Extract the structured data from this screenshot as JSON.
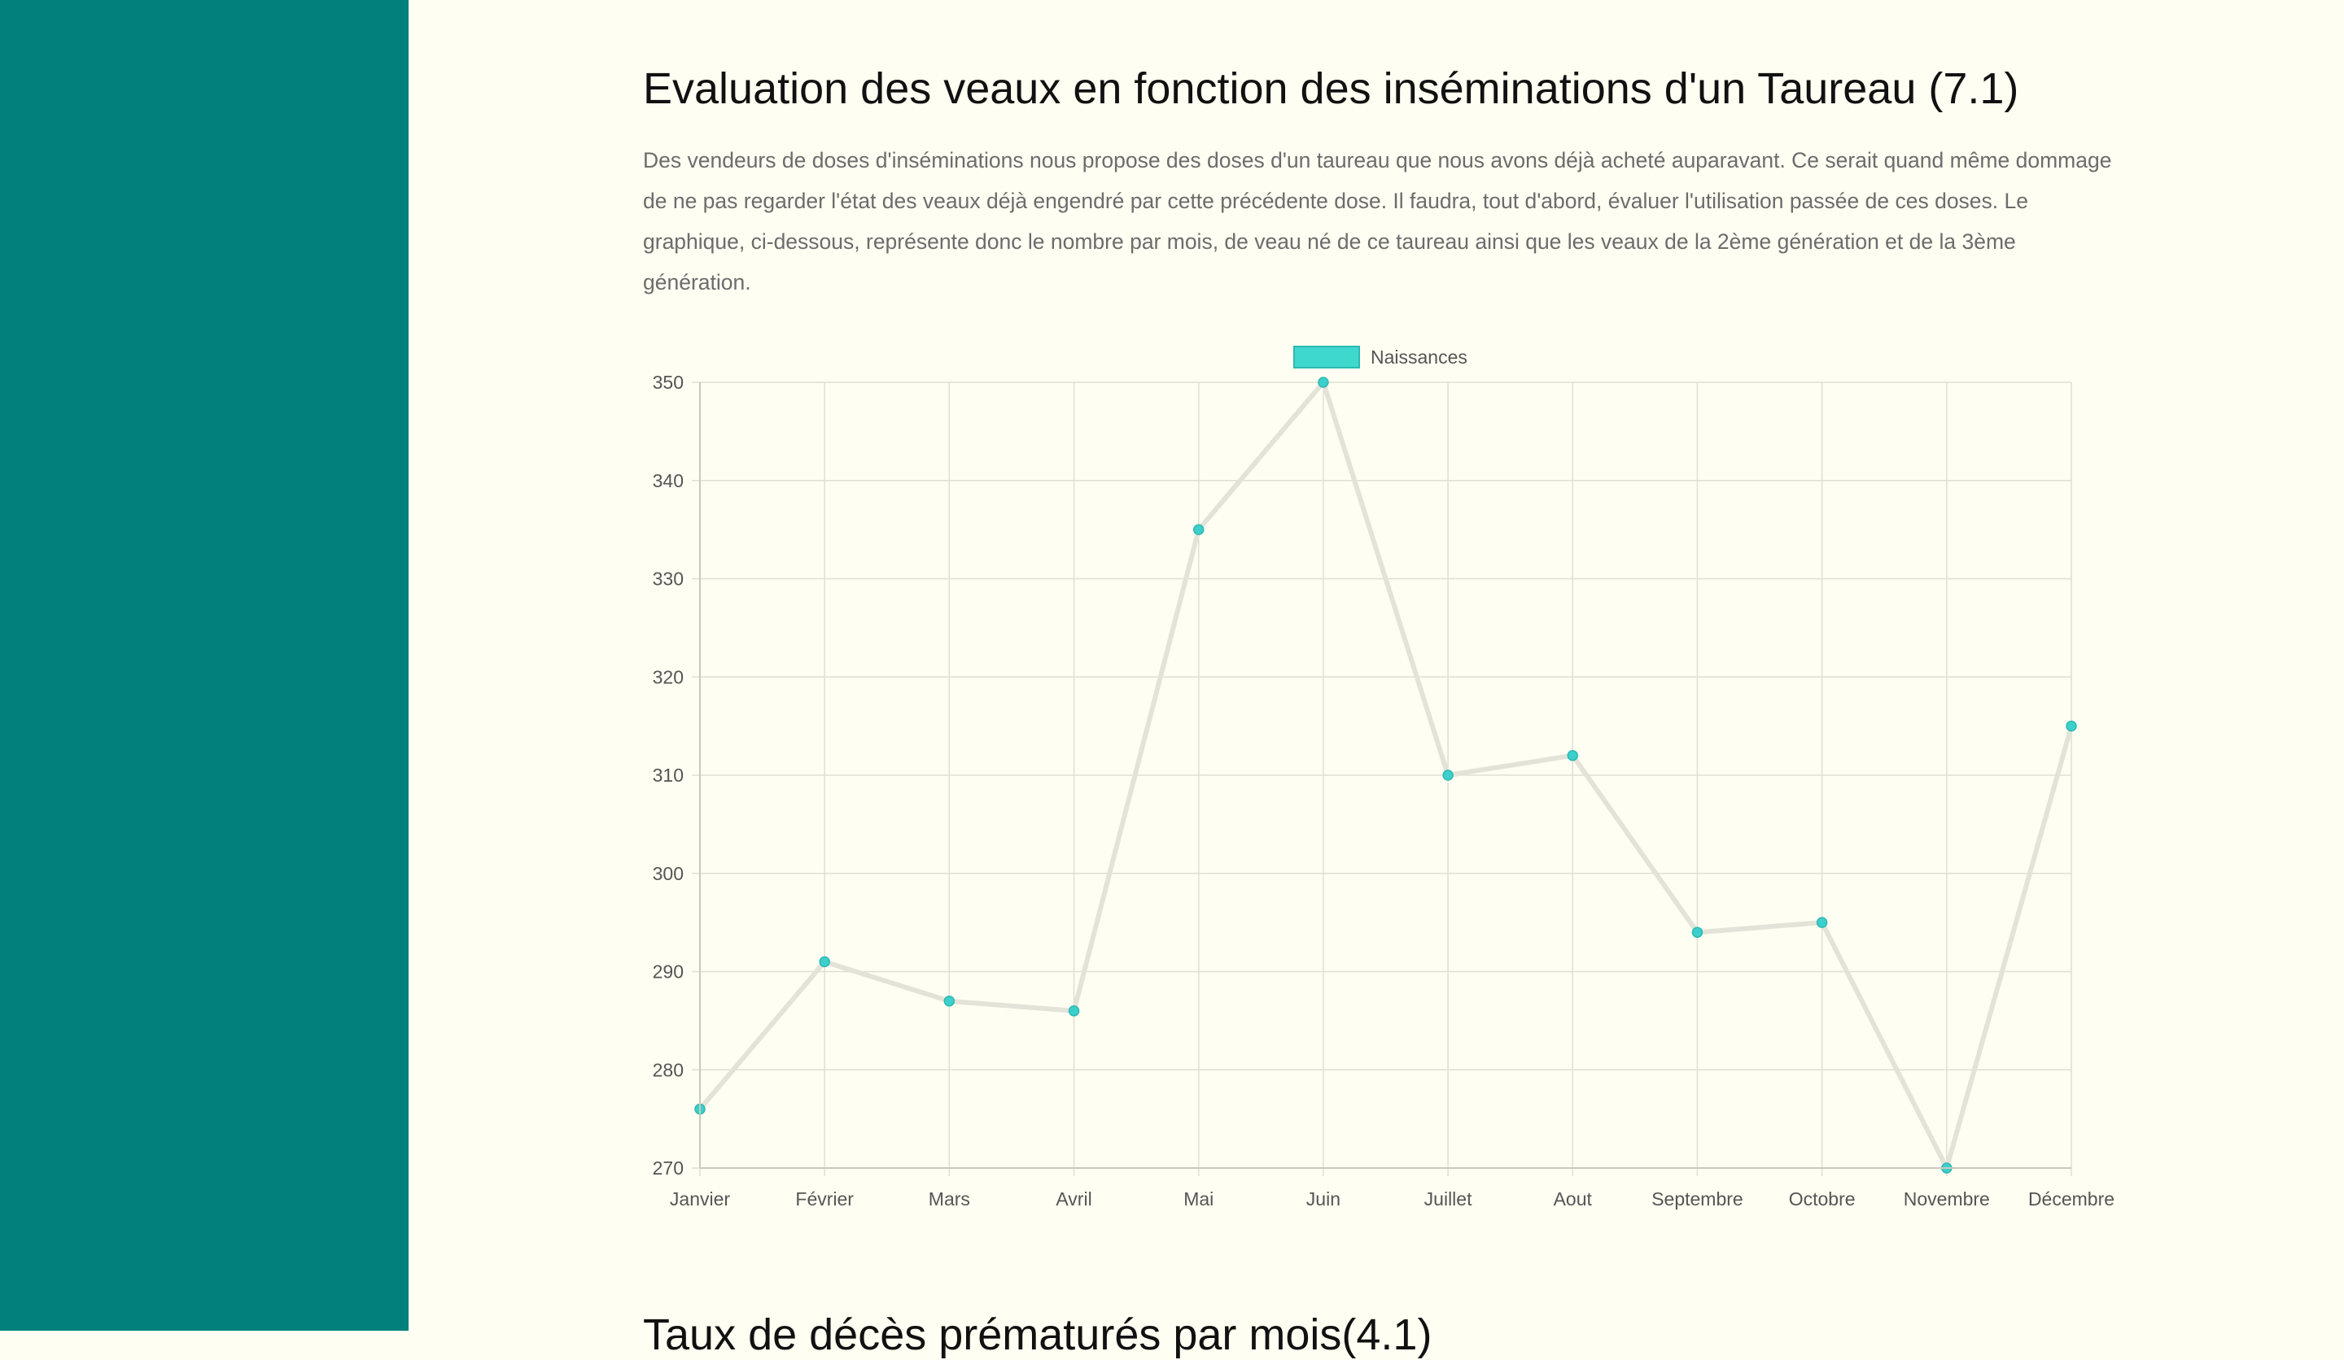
{
  "main": {
    "title": "Evaluation des veaux en fonction des inséminations d'un Taureau (7.1)",
    "description": "Des vendeurs de doses d'inséminations nous propose des doses d'un taureau que nous avons déjà acheté auparavant. Ce serait quand même dommage de ne pas regarder l'état des veaux déjà engendré par cette précédente dose. Il faudra, tout d'abord, évaluer l'utilisation passée de ces doses. Le graphique, ci-dessous, représente donc le nombre par mois, de veau né de ce taureau ainsi que les veaux de la 2ème génération et de la 3ème génération.",
    "next_section_title": "Taux de décès prématurés par mois(4.1)"
  },
  "colors": {
    "sidebar": "#01807c",
    "background": "#fefef2",
    "point": "#3ccfcb",
    "legend_fill": "#3fd8cf",
    "legend_border": "#2db9b0",
    "line": "#e3e3d9",
    "grid": "#dfdfd5"
  },
  "chart_data": {
    "type": "line",
    "categories": [
      "Janvier",
      "Février",
      "Mars",
      "Avril",
      "Mai",
      "Juin",
      "Juillet",
      "Aout",
      "Septembre",
      "Octobre",
      "Novembre",
      "Décembre"
    ],
    "series": [
      {
        "name": "Naissances",
        "values": [
          276,
          291,
          287,
          286,
          335,
          350,
          310,
          312,
          294,
          295,
          270,
          315
        ]
      }
    ],
    "ylim": [
      270,
      350
    ],
    "yticks": [
      270,
      280,
      290,
      300,
      310,
      320,
      330,
      340,
      350
    ],
    "grid": true,
    "legend_position": "top-center"
  }
}
